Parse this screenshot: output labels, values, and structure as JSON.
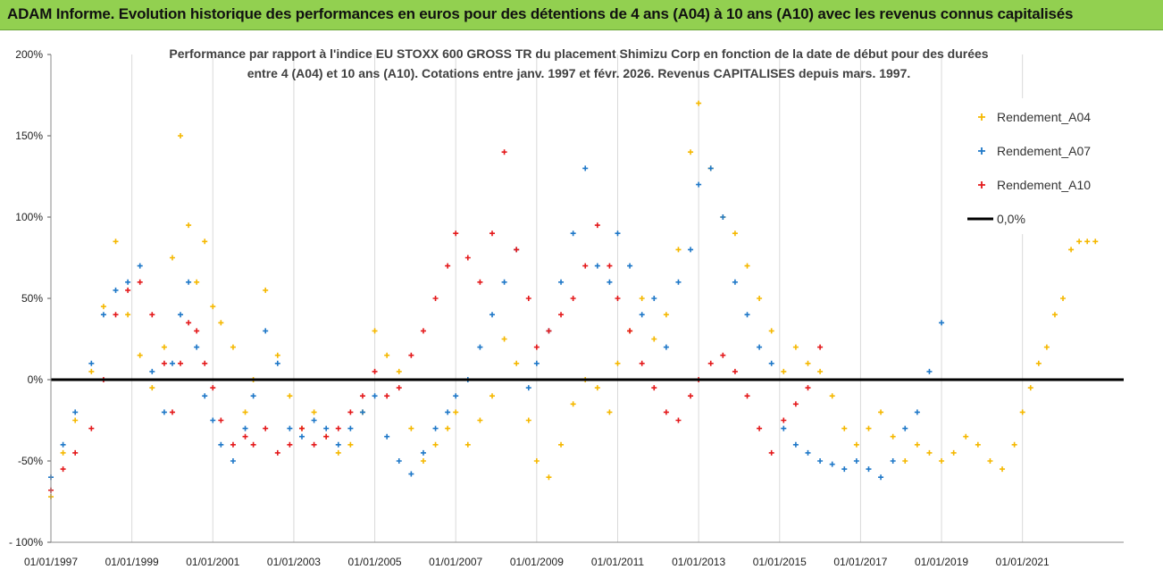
{
  "banner": {
    "title": "ADAM Informe. Evolution historique des performances en euros pour des détentions de 4 ans (A04) à 10 ans (A10) avec les revenus connus capitalisés"
  },
  "chart_data": {
    "type": "scatter",
    "title_lines": [
      "Performance par rapport à l'indice EU STOXX 600 GROSS TR  du placement Shimizu Corp en fonction de la date de début pour des durées",
      "entre 4 (A04) et 10 ans (A10). Cotations entre janv. 1997 et févr. 2026. Revenus CAPITALISES depuis mars. 1997."
    ],
    "x_range": [
      1997.0,
      2023.5
    ],
    "ylim": [
      -100,
      200
    ],
    "y_ticks": [
      {
        "value": 200,
        "label": "200%"
      },
      {
        "value": 150,
        "label": "150%"
      },
      {
        "value": 100,
        "label": "100%"
      },
      {
        "value": 50,
        "label": "50%"
      },
      {
        "value": 0,
        "label": "0%"
      },
      {
        "value": -50,
        "label": "-50%"
      },
      {
        "value": -100,
        "label": "- 100%"
      }
    ],
    "x_ticks": [
      {
        "value": 1997,
        "label": "01/01/1997"
      },
      {
        "value": 1999,
        "label": "01/01/1999"
      },
      {
        "value": 2001,
        "label": "01/01/2001"
      },
      {
        "value": 2003,
        "label": "01/01/2003"
      },
      {
        "value": 2005,
        "label": "01/01/2005"
      },
      {
        "value": 2007,
        "label": "01/01/2007"
      },
      {
        "value": 2009,
        "label": "01/01/2009"
      },
      {
        "value": 2011,
        "label": "01/01/2011"
      },
      {
        "value": 2013,
        "label": "01/01/2013"
      },
      {
        "value": 2015,
        "label": "01/01/2015"
      },
      {
        "value": 2017,
        "label": "01/01/2017"
      },
      {
        "value": 2019,
        "label": "01/01/2019"
      },
      {
        "value": 2021,
        "label": "01/01/2021"
      }
    ],
    "reference_line": {
      "name": "0,0%",
      "value": 0,
      "color": "#000000"
    },
    "series": [
      {
        "name": "Rendement_A04",
        "color": "#f5b800",
        "x": [
          1997.0,
          1997.3,
          1997.6,
          1998.0,
          1998.3,
          1998.6,
          1998.9,
          1999.2,
          1999.5,
          1999.8,
          2000.0,
          2000.2,
          2000.4,
          2000.6,
          2000.8,
          2001.0,
          2001.2,
          2001.5,
          2001.8,
          2002.0,
          2002.3,
          2002.6,
          2002.9,
          2003.2,
          2003.5,
          2003.8,
          2004.1,
          2004.4,
          2004.7,
          2005.0,
          2005.3,
          2005.6,
          2005.9,
          2006.2,
          2006.5,
          2006.8,
          2007.0,
          2007.3,
          2007.6,
          2007.9,
          2008.2,
          2008.5,
          2008.8,
          2009.0,
          2009.3,
          2009.6,
          2009.9,
          2010.2,
          2010.5,
          2010.8,
          2011.0,
          2011.3,
          2011.6,
          2011.9,
          2012.2,
          2012.5,
          2012.8,
          2013.0,
          2013.3,
          2013.6,
          2013.9,
          2014.2,
          2014.5,
          2014.8,
          2015.1,
          2015.4,
          2015.7,
          2016.0,
          2016.3,
          2016.6,
          2016.9,
          2017.2,
          2017.5,
          2017.8,
          2018.1,
          2018.4,
          2018.7,
          2019.0,
          2019.3,
          2019.6,
          2019.9,
          2020.2,
          2020.5,
          2020.8,
          2021.0,
          2021.2,
          2021.4,
          2021.6,
          2021.8,
          2022.0,
          2022.2,
          2022.4,
          2022.6,
          2022.8
        ],
        "y": [
          -72,
          -45,
          -25,
          5,
          45,
          85,
          40,
          15,
          -5,
          20,
          75,
          150,
          95,
          60,
          85,
          45,
          35,
          20,
          -20,
          0,
          55,
          15,
          -10,
          -30,
          -20,
          -35,
          -45,
          -40,
          -20,
          30,
          15,
          5,
          -30,
          -50,
          -40,
          -30,
          -20,
          -40,
          -25,
          -10,
          25,
          10,
          -25,
          -50,
          -60,
          -40,
          -15,
          0,
          -5,
          -20,
          10,
          30,
          50,
          25,
          40,
          80,
          140,
          170,
          130,
          100,
          90,
          70,
          50,
          30,
          5,
          20,
          10,
          5,
          -10,
          -30,
          -40,
          -30,
          -20,
          -35,
          -50,
          -40,
          -45,
          -50,
          -45,
          -35,
          -40,
          -50,
          -55,
          -40,
          -20,
          -5,
          10,
          20,
          40,
          50,
          80,
          85,
          85,
          85
        ]
      },
      {
        "name": "Rendement_A07",
        "color": "#1f78c8",
        "x": [
          1997.0,
          1997.3,
          1997.6,
          1998.0,
          1998.3,
          1998.6,
          1998.9,
          1999.2,
          1999.5,
          1999.8,
          2000.0,
          2000.2,
          2000.4,
          2000.6,
          2000.8,
          2001.0,
          2001.2,
          2001.5,
          2001.8,
          2002.0,
          2002.3,
          2002.6,
          2002.9,
          2003.2,
          2003.5,
          2003.8,
          2004.1,
          2004.4,
          2004.7,
          2005.0,
          2005.3,
          2005.6,
          2005.9,
          2006.2,
          2006.5,
          2006.8,
          2007.0,
          2007.3,
          2007.6,
          2007.9,
          2008.2,
          2008.5,
          2008.8,
          2009.0,
          2009.3,
          2009.6,
          2009.9,
          2010.2,
          2010.5,
          2010.8,
          2011.0,
          2011.3,
          2011.6,
          2011.9,
          2012.2,
          2012.5,
          2012.8,
          2013.0,
          2013.3,
          2013.6,
          2013.9,
          2014.2,
          2014.5,
          2014.8,
          2015.1,
          2015.4,
          2015.7,
          2016.0,
          2016.3,
          2016.6,
          2016.9,
          2017.2,
          2017.5,
          2017.8,
          2018.1,
          2018.4,
          2018.7,
          2019.0
        ],
        "y": [
          -60,
          -40,
          -20,
          10,
          40,
          55,
          60,
          70,
          5,
          -20,
          10,
          40,
          60,
          20,
          -10,
          -25,
          -40,
          -50,
          -30,
          -10,
          30,
          10,
          -30,
          -35,
          -25,
          -30,
          -40,
          -30,
          -20,
          -10,
          -35,
          -50,
          -58,
          -45,
          -30,
          -20,
          -10,
          0,
          20,
          40,
          60,
          80,
          -5,
          10,
          30,
          60,
          90,
          130,
          70,
          60,
          90,
          70,
          40,
          50,
          20,
          60,
          80,
          120,
          130,
          100,
          60,
          40,
          20,
          10,
          -30,
          -40,
          -45,
          -50,
          -52,
          -55,
          -50,
          -55,
          -60,
          -50,
          -30,
          -20,
          5,
          35
        ]
      },
      {
        "name": "Rendement_A10",
        "color": "#e41a1c",
        "x": [
          1997.0,
          1997.3,
          1997.6,
          1998.0,
          1998.3,
          1998.6,
          1998.9,
          1999.2,
          1999.5,
          1999.8,
          2000.0,
          2000.2,
          2000.4,
          2000.6,
          2000.8,
          2001.0,
          2001.2,
          2001.5,
          2001.8,
          2002.0,
          2002.3,
          2002.6,
          2002.9,
          2003.2,
          2003.5,
          2003.8,
          2004.1,
          2004.4,
          2004.7,
          2005.0,
          2005.3,
          2005.6,
          2005.9,
          2006.2,
          2006.5,
          2006.8,
          2007.0,
          2007.3,
          2007.6,
          2007.9,
          2008.2,
          2008.5,
          2008.8,
          2009.0,
          2009.3,
          2009.6,
          2009.9,
          2010.2,
          2010.5,
          2010.8,
          2011.0,
          2011.3,
          2011.6,
          2011.9,
          2012.2,
          2012.5,
          2012.8,
          2013.0,
          2013.3,
          2013.6,
          2013.9,
          2014.2,
          2014.5,
          2014.8,
          2015.1,
          2015.4,
          2015.7,
          2016.0
        ],
        "y": [
          -68,
          -55,
          -45,
          -30,
          0,
          40,
          55,
          60,
          40,
          10,
          -20,
          10,
          35,
          30,
          10,
          -5,
          -25,
          -40,
          -35,
          -40,
          -30,
          -45,
          -40,
          -30,
          -40,
          -35,
          -30,
          -20,
          -10,
          5,
          -10,
          -5,
          15,
          30,
          50,
          70,
          90,
          75,
          60,
          90,
          140,
          80,
          50,
          20,
          30,
          40,
          50,
          70,
          95,
          70,
          50,
          30,
          10,
          -5,
          -20,
          -25,
          -10,
          0,
          10,
          15,
          5,
          -10,
          -30,
          -45,
          -25,
          -15,
          -5,
          20
        ]
      }
    ]
  }
}
